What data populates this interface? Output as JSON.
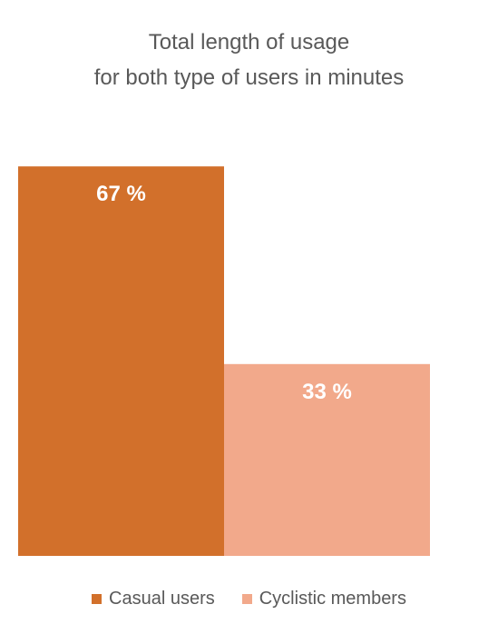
{
  "chart_data": {
    "type": "bar",
    "title_lines": [
      "Total length of usage",
      "for both type of users in minutes"
    ],
    "categories": [
      "Casual users",
      "Cyclistic members"
    ],
    "values": [
      67,
      33
    ],
    "data_labels": [
      "67 %",
      "33 %"
    ],
    "ylim": [
      0,
      80
    ],
    "grid": false,
    "legend_position": "bottom",
    "colors": [
      "#D2702B",
      "#F2A98B"
    ],
    "label_color": "#ffffff"
  }
}
